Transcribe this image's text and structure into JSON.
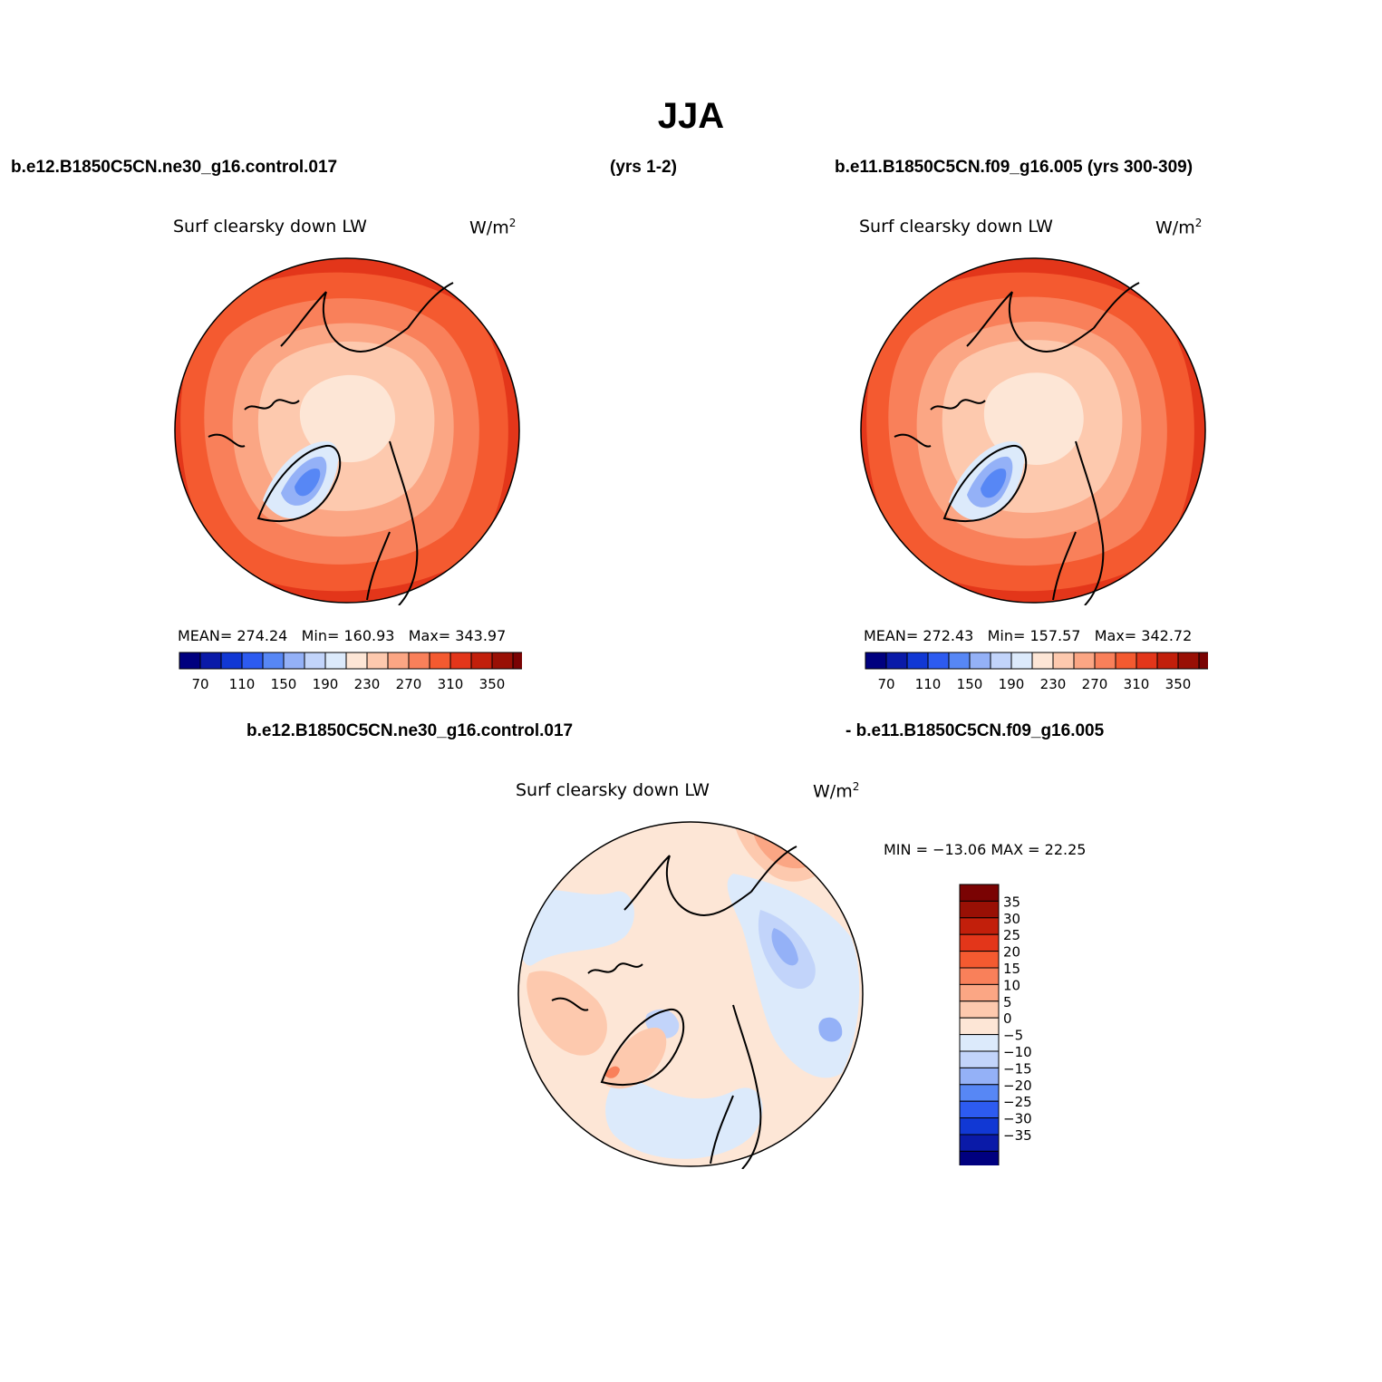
{
  "figure": {
    "title": "JJA",
    "header_left_case": "b.e12.B1850C5CN.ne30_g16.control.017",
    "header_left_years": "(yrs 1-2)",
    "header_right": "b.e11.B1850C5CN.f09_g16.005 (yrs 300-309)",
    "diff_header_left": "b.e12.B1850C5CN.ne30_g16.control.017",
    "diff_header_right": "- b.e11.B1850C5CN.f09_g16.005"
  },
  "panels": [
    {
      "variable": "Surf clearsky down LW",
      "units_base": "W/m",
      "units_exp": "2",
      "mean_label": "MEAN=",
      "mean": "274.24",
      "min_label": "Min=",
      "min": "160.93",
      "max_label": "Max=",
      "max": "343.97"
    },
    {
      "variable": "Surf clearsky down LW",
      "units_base": "W/m",
      "units_exp": "2",
      "mean_label": "MEAN=",
      "mean": "272.43",
      "min_label": "Min=",
      "min": "157.57",
      "max_label": "Max=",
      "max": "342.72"
    },
    {
      "variable": "Surf clearsky down LW",
      "units_base": "W/m",
      "units_exp": "2",
      "minmax_text": "MIN = −13.06 MAX =   22.25"
    }
  ],
  "colorbar_main": {
    "colors": [
      "#00007f",
      "#0a1aa8",
      "#1138d4",
      "#2d5bf0",
      "#5787f5",
      "#94b1f7",
      "#c2d4fa",
      "#dceafb",
      "#fde6d6",
      "#fdc9ae",
      "#fba684",
      "#f9805a",
      "#f45a30",
      "#e3361a",
      "#c21f0b",
      "#991005",
      "#7a0303"
    ],
    "tick_labels": [
      "70",
      "110",
      "150",
      "190",
      "230",
      "270",
      "310",
      "350"
    ]
  },
  "colorbar_diff": {
    "colors": [
      "#7a0303",
      "#991005",
      "#c21f0b",
      "#e3361a",
      "#f45a30",
      "#f9805a",
      "#fba684",
      "#fdc9ae",
      "#fde6d6",
      "#dceafb",
      "#c2d4fa",
      "#94b1f7",
      "#5787f5",
      "#2d5bf0",
      "#1138d4",
      "#0a1aa8",
      "#00007f"
    ],
    "tick_labels": [
      "35",
      "30",
      "25",
      "20",
      "15",
      "10",
      "5",
      "0",
      "−5",
      "−10",
      "−15",
      "−20",
      "−25",
      "−30",
      "−35"
    ]
  },
  "map_colors": {
    "base_outer": "#e3361a",
    "ring2": "#f45a30",
    "ring3": "#f9805a",
    "ring4": "#fba684",
    "ring5": "#fdc9ae",
    "center": "#fde6d6",
    "greenland_1": "#dceafb",
    "greenland_2": "#94b1f7",
    "greenland_3": "#5787f5",
    "diff_base": "#fde6d6",
    "diff_blue_1": "#dceafb",
    "diff_blue_2": "#c2d4fa",
    "diff_blue_3": "#94b1f7",
    "diff_red_1": "#fdc9ae",
    "diff_red_2": "#fba684",
    "diff_red_3": "#f9805a"
  }
}
